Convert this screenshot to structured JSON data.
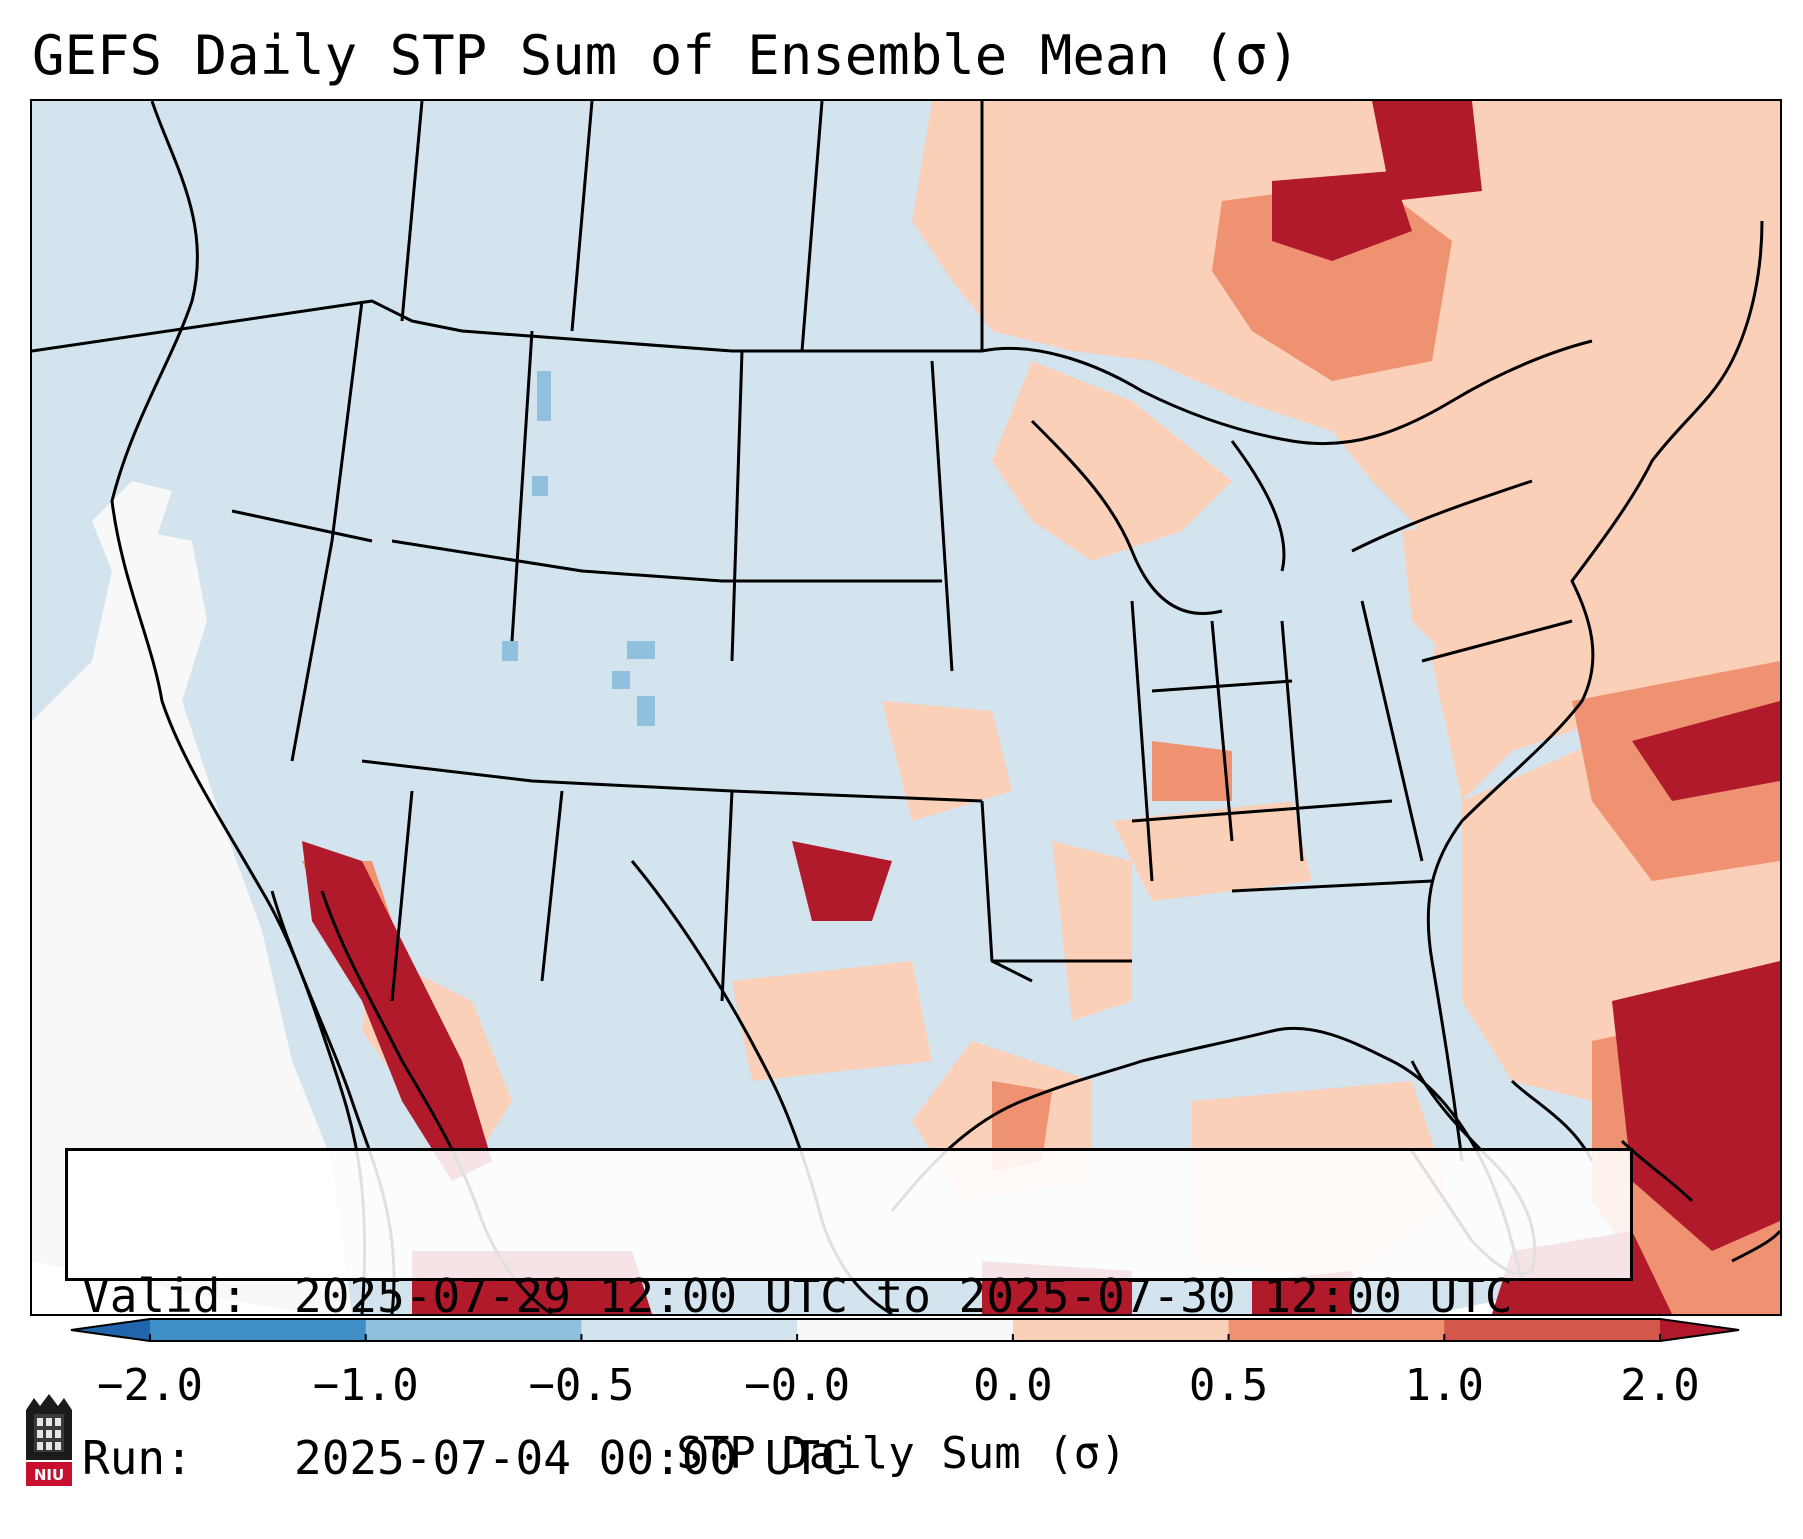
{
  "title": "GEFS Daily STP Sum of Ensemble Mean (σ)",
  "annotation": {
    "valid_label": "Valid:",
    "valid_value": "2025-07-29 12:00 UTC to 2025-07-30 12:00 UTC",
    "run_label": "Run:",
    "run_value": "2025-07-04 00:00 UTC"
  },
  "colorbar": {
    "label": "STP Daily Sum (σ)",
    "ticks": [
      "−2.0",
      "−1.0",
      "−0.5",
      "−0.0",
      "0.0",
      "0.5",
      "1.0",
      "2.0"
    ],
    "colors": [
      "#2f78b5",
      "#3f8fc6",
      "#90c0de",
      "#d3e4ef",
      "#f8f8f8",
      "#fbd0b8",
      "#ef9272",
      "#d1584a",
      "#b11a2b"
    ],
    "underflow_color": "#2166ac",
    "overflow_color": "#b2182b"
  },
  "logo": {
    "text": "NIU"
  },
  "icons": {
    "logo": "university-shield-icon"
  }
}
